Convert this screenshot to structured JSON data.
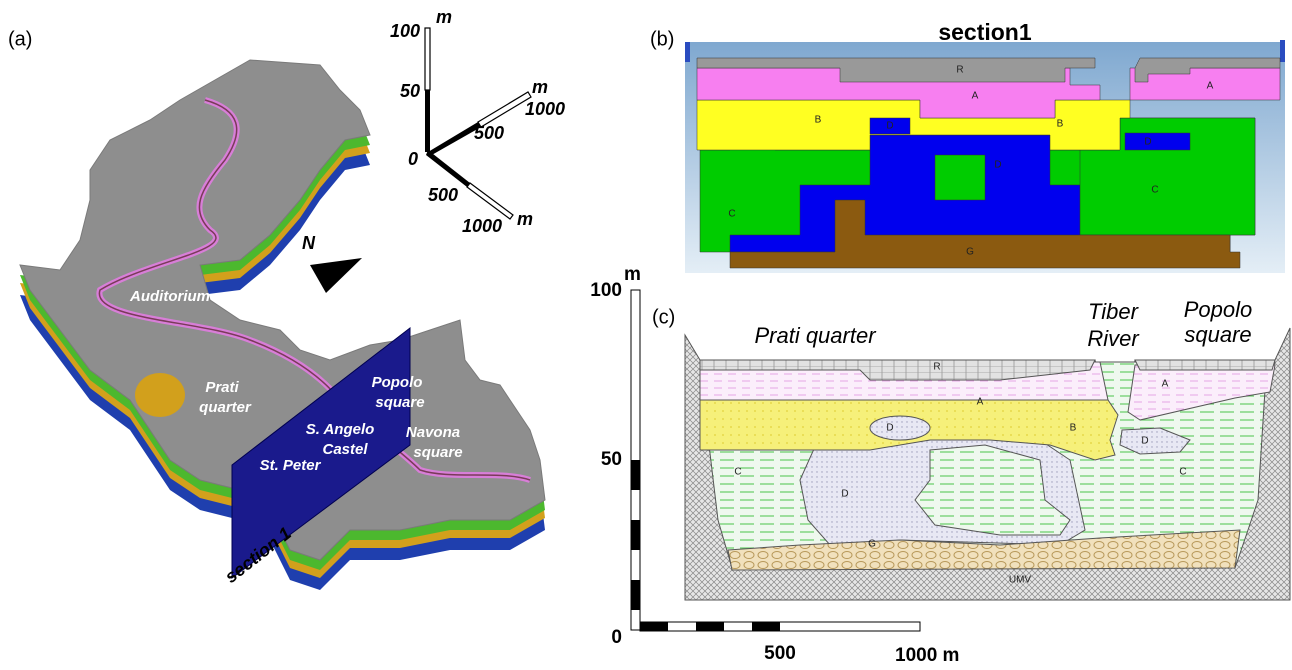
{
  "panel_a": {
    "label": "(a)",
    "axes": {
      "origin": "0",
      "unit": "m",
      "vertical": [
        "50",
        "100"
      ],
      "east": [
        "500",
        "1000"
      ],
      "south": [
        "500",
        "1000"
      ]
    },
    "north": "N",
    "places": [
      "Auditorium",
      "Prati",
      "quarter",
      "Popolo",
      "square",
      "S. Angelo",
      "Castel",
      "Navona",
      "square",
      "St. Peter"
    ],
    "section": "section 1"
  },
  "panel_b": {
    "label": "(b)",
    "title": "section1",
    "layers": [
      "R",
      "A",
      "A",
      "B",
      "B",
      "D",
      "D",
      "D",
      "C",
      "C",
      "G"
    ]
  },
  "panel_c": {
    "label": "(c)",
    "places": [
      "Prati quarter",
      "Tiber",
      "River",
      "Popolo",
      "square"
    ],
    "layers": [
      "R",
      "A",
      "A",
      "D",
      "B",
      "D",
      "C",
      "C",
      "D",
      "G",
      "UMV"
    ],
    "scale": {
      "y_ticks": [
        "100",
        "50",
        "0"
      ],
      "y_unit": "m",
      "x_ticks": [
        "500",
        "1000 m"
      ]
    }
  }
}
